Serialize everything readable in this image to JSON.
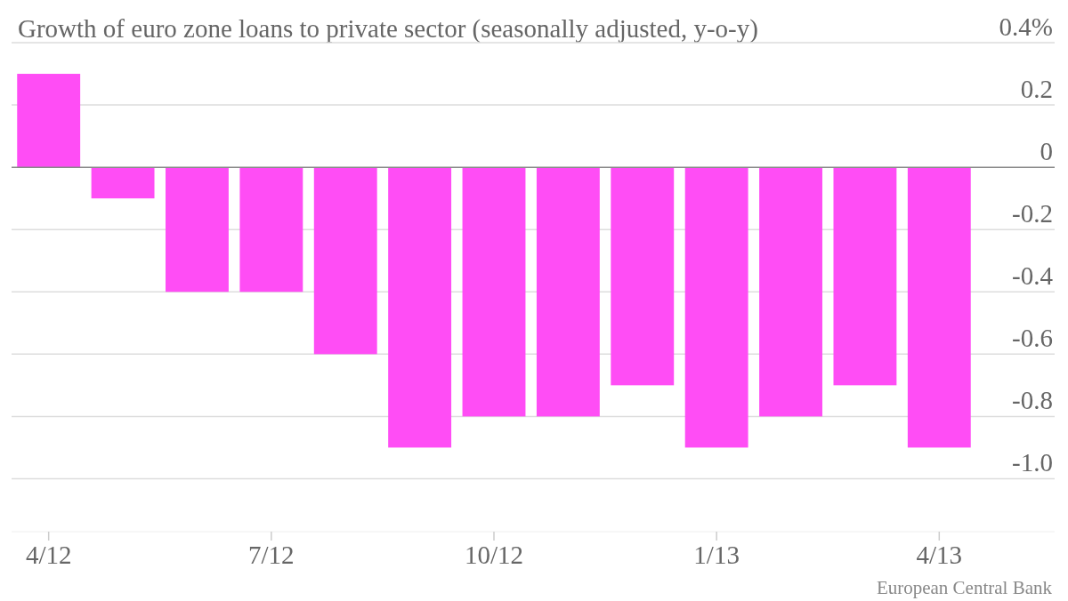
{
  "chart_data": {
    "type": "bar",
    "title": "Growth of euro zone loans to private sector (seasonally adjusted, y-o-y)",
    "categories": [
      "4/12",
      null,
      null,
      "7/12",
      null,
      null,
      "10/12",
      null,
      null,
      "1/13",
      null,
      null,
      "4/13"
    ],
    "values": [
      0.3,
      -0.1,
      -0.4,
      -0.4,
      -0.6,
      -0.9,
      -0.8,
      -0.8,
      -0.7,
      -0.9,
      -0.8,
      -0.7,
      -0.9
    ],
    "color": "#ff4df5",
    "ylim": [
      -1.17,
      0.4
    ],
    "yticks": [
      {
        "value": 0.4,
        "label": "0.4%"
      },
      0.2,
      0,
      -0.2,
      -0.4,
      -0.6,
      -0.8,
      {
        "value": -1.0,
        "label": "-1.0"
      }
    ],
    "grid": "y",
    "annotations": [
      "European Central Bank"
    ]
  }
}
